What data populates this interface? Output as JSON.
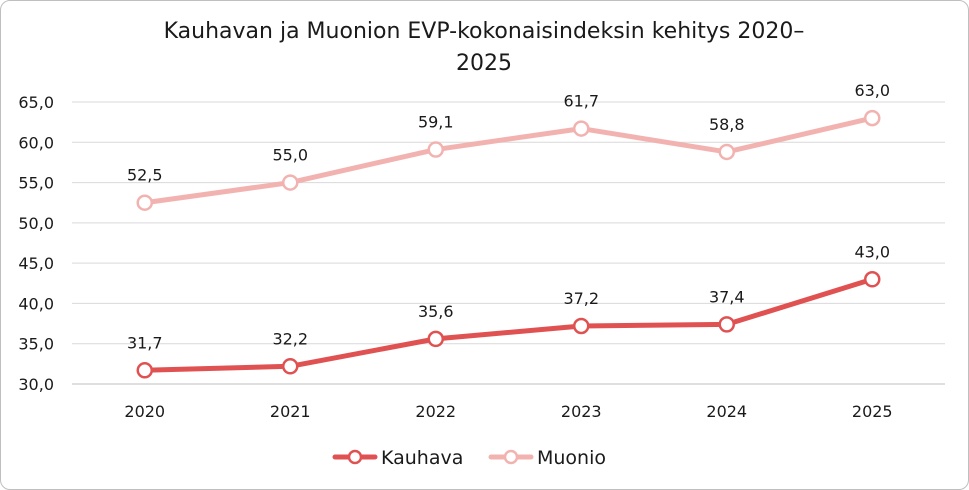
{
  "chart_data": {
    "type": "line",
    "title_lines": [
      "Kauhavan ja Muonion EVP-kokonaisindeksin kehitys 2020–",
      "2025"
    ],
    "categories": [
      "2020",
      "2021",
      "2022",
      "2023",
      "2024",
      "2025"
    ],
    "ylim": [
      30,
      65
    ],
    "yticks": [
      30,
      35,
      40,
      45,
      50,
      55,
      60,
      65
    ],
    "ytick_labels": [
      "30,0",
      "35,0",
      "40,0",
      "45,0",
      "50,0",
      "55,0",
      "60,0",
      "65,0"
    ],
    "grid": true,
    "legend_position": "bottom",
    "series": [
      {
        "name": "Kauhava",
        "values": [
          31.7,
          32.2,
          35.6,
          37.2,
          37.4,
          43.0
        ],
        "labels": [
          "31,7",
          "32,2",
          "35,6",
          "37,2",
          "37,4",
          "43,0"
        ],
        "color": "#e05252"
      },
      {
        "name": "Muonio",
        "values": [
          52.5,
          55.0,
          59.1,
          61.7,
          58.8,
          63.0
        ],
        "labels": [
          "52,5",
          "55,0",
          "59,1",
          "61,7",
          "58,8",
          "63,0"
        ],
        "color": "#f2b3b0"
      }
    ]
  }
}
